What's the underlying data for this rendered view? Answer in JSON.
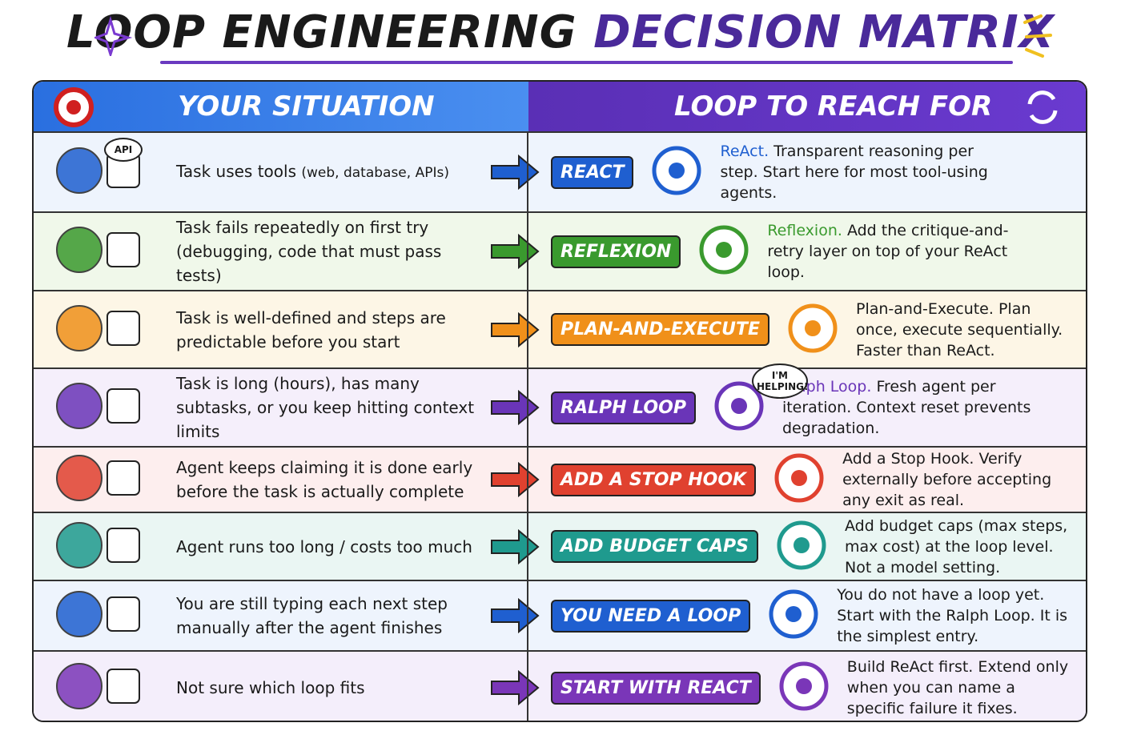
{
  "header": {
    "title_main": "LOOP ENGINEERING",
    "title_accent": "DECISION MATRIX"
  },
  "table": {
    "left_header": "YOUR SITUATION",
    "right_header": "LOOP TO REACH FOR",
    "rows": [
      {
        "situation": "Task uses tools",
        "situation_note": "(web, database, APIs)",
        "icon_label": "API",
        "badge": "REACT",
        "desc_name": "ReAct.",
        "desc": "Transparent reasoning per step. Start here for most tool-using agents."
      },
      {
        "situation": "Task fails repeatedly on first try (debugging, code that must pass tests)",
        "badge": "REFLEXION",
        "desc_name": "Reflexion.",
        "desc": "Add the critique-and-retry layer on top of your ReAct loop."
      },
      {
        "situation": "Task is well-defined and steps are predictable before you start",
        "badge": "PLAN-AND-EXECUTE",
        "desc": "Plan-and-Execute. Plan once, execute sequentially. Faster than ReAct."
      },
      {
        "situation": "Task is long (hours), has many subtasks, or you keep hitting context limits",
        "badge": "RALPH LOOP",
        "bubble": "I'M HELPING!",
        "desc_name": "Ralph Loop.",
        "desc": "Fresh agent per iteration. Context reset prevents degradation."
      },
      {
        "situation": "Agent keeps claiming it is done early before the task is actually complete",
        "badge": "ADD A STOP HOOK",
        "desc": "Add a Stop Hook. Verify externally before accepting any exit as real."
      },
      {
        "situation": "Agent runs too long / costs too much",
        "badge": "ADD BUDGET CAPS",
        "desc": "Add budget caps (max steps, max cost) at the loop level. Not a model setting."
      },
      {
        "situation": "You are still typing each next step manually after the agent finishes",
        "badge": "YOU NEED A LOOP",
        "desc": "You do not have a loop yet. Start with the Ralph Loop. It is the simplest entry."
      },
      {
        "situation": "Not sure which loop fits",
        "badge": "START WITH REACT",
        "desc": "Build ReAct first. Extend only when you can name a specific failure it fixes."
      }
    ]
  }
}
